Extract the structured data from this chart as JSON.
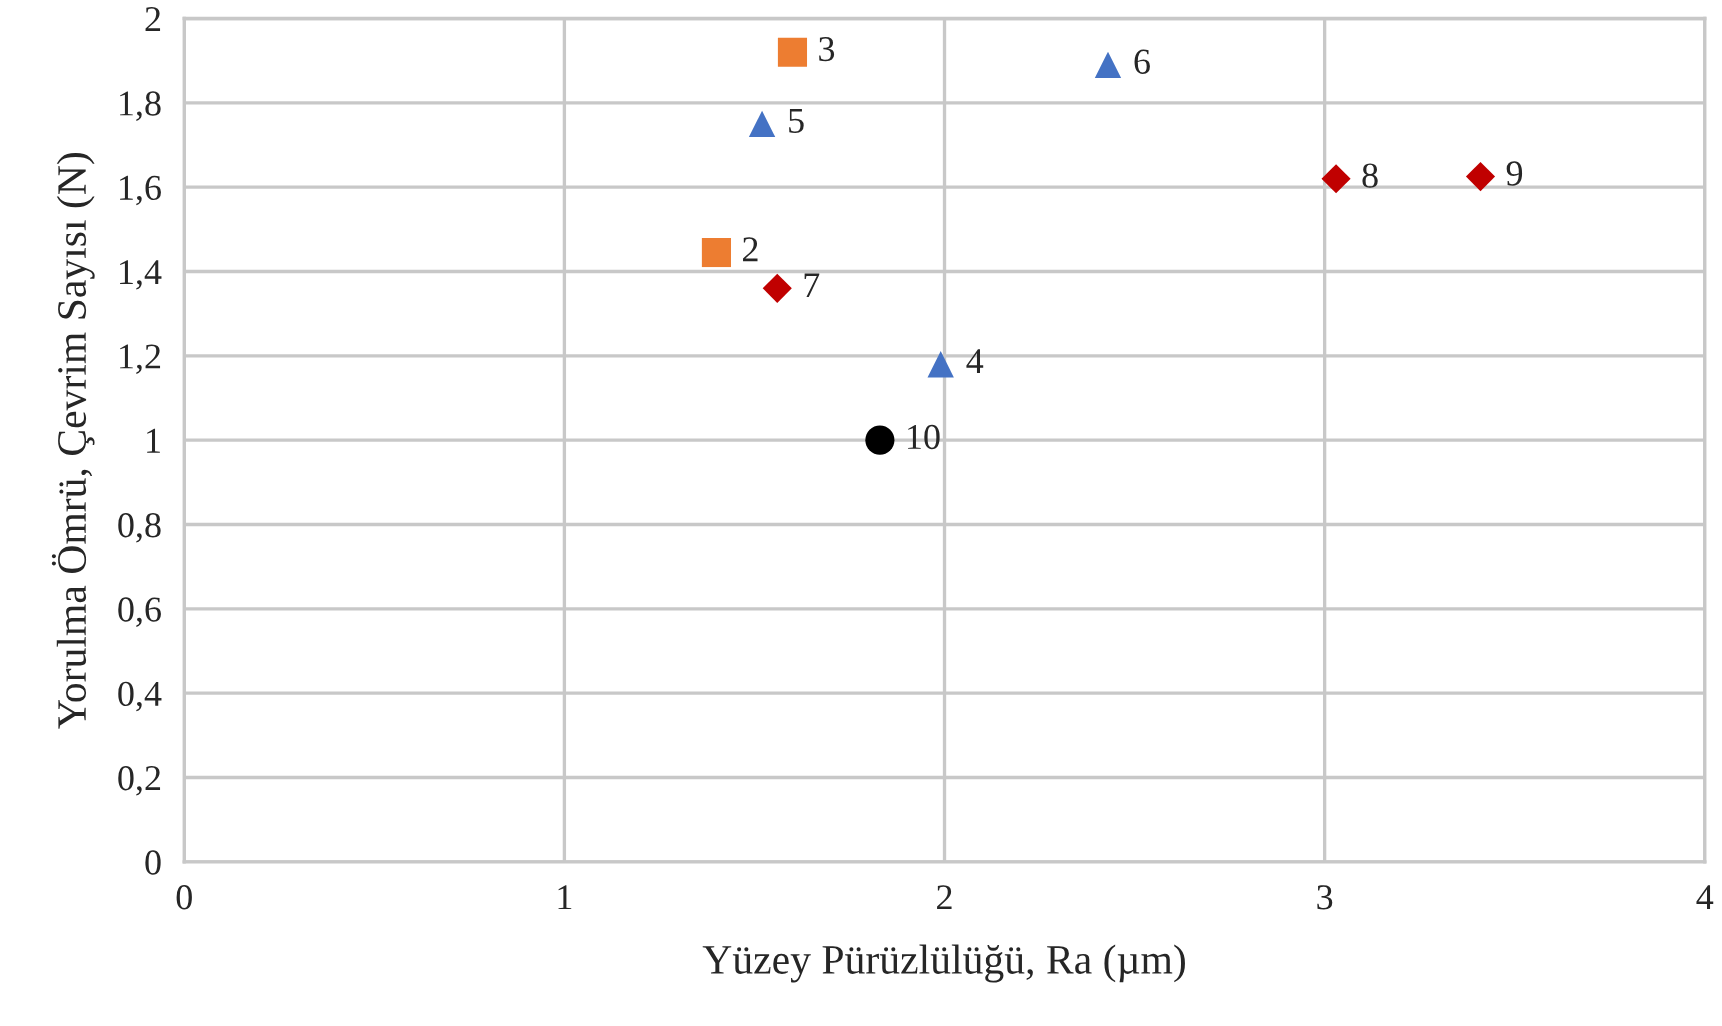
{
  "chart_data": {
    "type": "scatter",
    "xlabel": "Yüzey Pürüzlülüğü, Ra (µm)",
    "ylabel": "Yorulma Ömrü, Çevrim Sayısı (N)",
    "series": [
      {
        "color": "#ed7d31",
        "marker": "square",
        "x": [
          1.4,
          1.6
        ],
        "values": [
          1.445,
          1.92
        ]
      },
      {
        "color": "#4472c4",
        "marker": "triangle",
        "x": [
          1.99,
          1.52,
          2.43
        ],
        "values": [
          1.18,
          1.75,
          1.89
        ]
      },
      {
        "color": "#c00000",
        "marker": "diamond",
        "x": [
          1.56,
          3.03,
          3.41
        ],
        "values": [
          1.36,
          1.62,
          1.625
        ]
      },
      {
        "color": "#000000",
        "marker": "circle",
        "x": [
          1.83
        ],
        "values": [
          1.0
        ]
      }
    ],
    "annotations": [
      {
        "text": "2",
        "x": 1.4,
        "y": 1.445
      },
      {
        "text": "3",
        "x": 1.6,
        "y": 1.92
      },
      {
        "text": "4",
        "x": 1.99,
        "y": 1.18
      },
      {
        "text": "5",
        "x": 1.52,
        "y": 1.75
      },
      {
        "text": "6",
        "x": 2.43,
        "y": 1.89
      },
      {
        "text": "7",
        "x": 1.56,
        "y": 1.36
      },
      {
        "text": "8",
        "x": 3.03,
        "y": 1.62
      },
      {
        "text": "9",
        "x": 3.41,
        "y": 1.625
      },
      {
        "text": "10",
        "x": 1.83,
        "y": 1.0
      }
    ],
    "xlim": [
      0,
      4
    ],
    "xticks": [
      0,
      1,
      2,
      3,
      4
    ],
    "ylim": [
      0,
      2
    ],
    "yticks": [
      0,
      {
        "value": 0.2,
        "label": "0,2"
      },
      {
        "value": 0.4,
        "label": "0,4"
      },
      {
        "value": 0.6,
        "label": "0,6"
      },
      {
        "value": 0.8,
        "label": "0,8"
      },
      1,
      {
        "value": 1.2,
        "label": "1,2"
      },
      {
        "value": 1.4,
        "label": "1,4"
      },
      {
        "value": 1.6,
        "label": "1,6"
      },
      {
        "value": 1.8,
        "label": "1,8"
      },
      2
    ],
    "grid": true,
    "legend": false
  }
}
